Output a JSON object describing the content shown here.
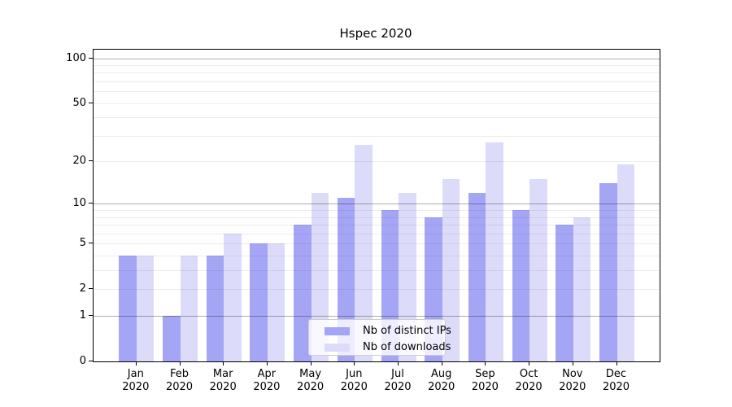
{
  "title": "Hspec 2020",
  "colors": {
    "ips_bar": "#a5a5f5",
    "downloads_bar": "#dcdcfa",
    "axis": "#000000",
    "grid_major": "rgba(0,0,0,0.32)",
    "grid_minor": "rgba(0,0,0,0.07)",
    "legend_border": "#cccccc"
  },
  "chart_data": {
    "type": "bar",
    "title": "Hspec 2020",
    "categories": [
      "Jan",
      "Feb",
      "Mar",
      "Apr",
      "May",
      "Jun",
      "Jul",
      "Aug",
      "Sep",
      "Oct",
      "Nov",
      "Dec"
    ],
    "category_year": "2020",
    "series": [
      {
        "name": "Nb of distinct IPs",
        "color_key": "ips_bar",
        "values": [
          4,
          1,
          4,
          5,
          7,
          11,
          9,
          8,
          12,
          9,
          7,
          14
        ]
      },
      {
        "name": "Nb of downloads",
        "color_key": "downloads_bar",
        "values": [
          4,
          4,
          6,
          5,
          12,
          26,
          12,
          15,
          27,
          15,
          8,
          19
        ]
      }
    ],
    "xlabel": "",
    "ylabel": "",
    "yscale": "log1p",
    "ylim": [
      0,
      113
    ],
    "y_tick_values": [
      0,
      1,
      2,
      5,
      10,
      20,
      50,
      100
    ],
    "y_tick_labels": [
      "0",
      "1",
      "2",
      "5",
      "10",
      "20",
      "50",
      "100"
    ],
    "y_major_gridlines": [
      1,
      10,
      100
    ],
    "y_minor_gridlines": [
      2,
      3,
      4,
      5,
      6,
      7,
      8,
      9,
      20,
      30,
      40,
      50,
      60,
      70,
      80,
      90
    ],
    "grid": true,
    "grid_above_bars": true,
    "legend_position": "lower center-right inside plot"
  },
  "legend": {
    "items": [
      {
        "label": "Nb of distinct IPs",
        "color_key": "ips_bar"
      },
      {
        "label": "Nb of downloads",
        "color_key": "downloads_bar"
      }
    ]
  }
}
